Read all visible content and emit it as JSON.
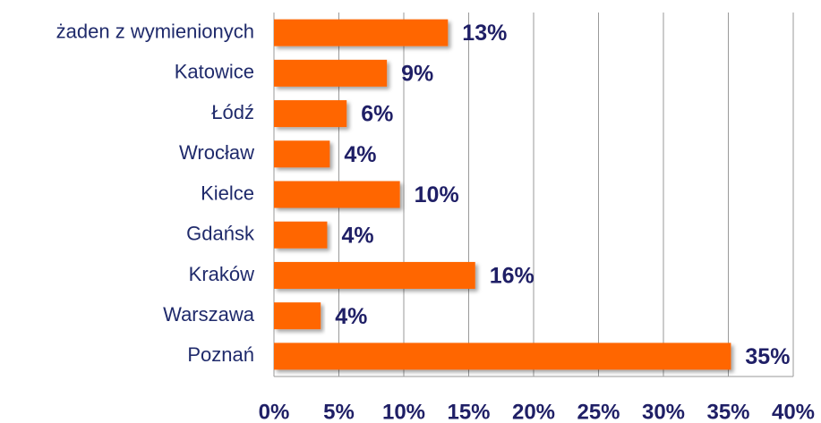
{
  "chart_data": {
    "type": "barh",
    "categories": [
      "żaden z wymienionych",
      "Katowice",
      "Łódź",
      "Wrocław",
      "Kielce",
      "Gdańsk",
      "Kraków",
      "Warszawa",
      "Poznań"
    ],
    "values": [
      13.4,
      8.7,
      5.6,
      4.3,
      9.7,
      4.1,
      15.5,
      3.6,
      35.2
    ],
    "value_labels": [
      "13%",
      "9%",
      "6%",
      "4%",
      "10%",
      "4%",
      "16%",
      "4%",
      "35%"
    ],
    "color": "#ff6600",
    "xlim": [
      0,
      40
    ],
    "xticks": [
      {
        "value": 0,
        "label": "0%"
      },
      {
        "value": 5,
        "label": "5%"
      },
      {
        "value": 10,
        "label": "10%"
      },
      {
        "value": 15,
        "label": "15%"
      },
      {
        "value": 20,
        "label": "20%"
      },
      {
        "value": 25,
        "label": "25%"
      },
      {
        "value": 30,
        "label": "30%"
      },
      {
        "value": 35,
        "label": "35%"
      },
      {
        "value": 40,
        "label": "40%"
      }
    ],
    "grid": true
  }
}
